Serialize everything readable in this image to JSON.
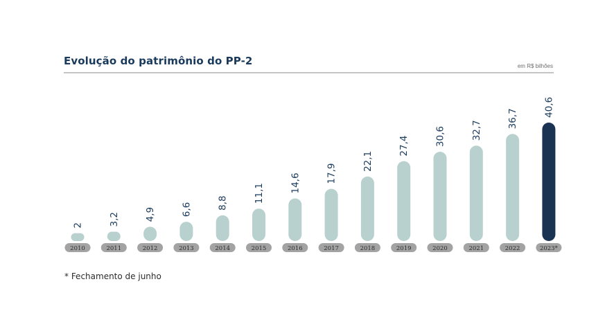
{
  "header": {
    "title": "Evolução do patrimônio do PP-2",
    "unit": "em R$ bilhões"
  },
  "footnote": "* Fechamento de junho",
  "colors": {
    "bar": "#b8d1ce",
    "highlight_bar": "#1a3352",
    "year_pill": "#a3a3a3",
    "value_label": "#1a3a5c",
    "rule": "#c4c4c4"
  },
  "chart_data": {
    "type": "bar",
    "title": "Evolução do patrimônio do PP-2",
    "unit": "em R$ bilhões",
    "categories": [
      "2010",
      "2011",
      "2012",
      "2013",
      "2014",
      "2015",
      "2016",
      "2017",
      "2018",
      "2019",
      "2020",
      "2021",
      "2022",
      "2023*"
    ],
    "values": [
      2,
      3.2,
      4.9,
      6.6,
      8.8,
      11.1,
      14.6,
      17.9,
      22.1,
      27.4,
      30.6,
      32.7,
      36.7,
      40.6
    ],
    "value_labels": [
      "2",
      "3,2",
      "4,9",
      "6,6",
      "8,8",
      "11,1",
      "14,6",
      "17,9",
      "22,1",
      "27,4",
      "30,6",
      "32,7",
      "36,7",
      "40,6"
    ],
    "highlight_category": "2023*",
    "ylim": [
      0,
      40.6
    ],
    "grid": false,
    "legend": "none"
  }
}
